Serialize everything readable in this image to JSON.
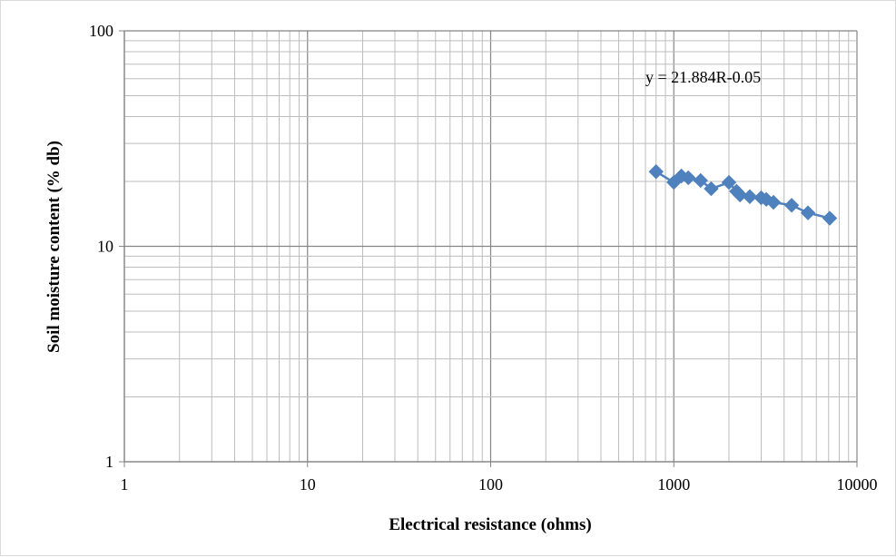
{
  "chart_data": {
    "type": "scatter",
    "x_scale": "log",
    "y_scale": "log",
    "xlim": [
      1,
      10000
    ],
    "ylim": [
      1,
      100
    ],
    "x_ticks": [
      "1",
      "10",
      "100",
      "1000",
      "10000"
    ],
    "y_ticks": [
      "1",
      "10",
      "100"
    ],
    "xlabel": "Electrical resistance (ohms)",
    "ylabel": "Soil moisture content (% db)",
    "grid": "major and minor",
    "annotation": "y = 21.884R-0.05",
    "series": [
      {
        "color": "#4f81bd",
        "marker": "diamond",
        "connected": true,
        "points": [
          {
            "x": 800,
            "y": 22.2
          },
          {
            "x": 1000,
            "y": 19.8
          },
          {
            "x": 1100,
            "y": 21.2
          },
          {
            "x": 1200,
            "y": 20.8
          },
          {
            "x": 1400,
            "y": 20.2
          },
          {
            "x": 1600,
            "y": 18.5
          },
          {
            "x": 2000,
            "y": 19.8
          },
          {
            "x": 2200,
            "y": 18.0
          },
          {
            "x": 2300,
            "y": 17.3
          },
          {
            "x": 2600,
            "y": 17.0
          },
          {
            "x": 3000,
            "y": 16.8
          },
          {
            "x": 3200,
            "y": 16.5
          },
          {
            "x": 3500,
            "y": 16.0
          },
          {
            "x": 4400,
            "y": 15.5
          },
          {
            "x": 5400,
            "y": 14.3
          },
          {
            "x": 7100,
            "y": 13.5
          }
        ]
      }
    ]
  }
}
